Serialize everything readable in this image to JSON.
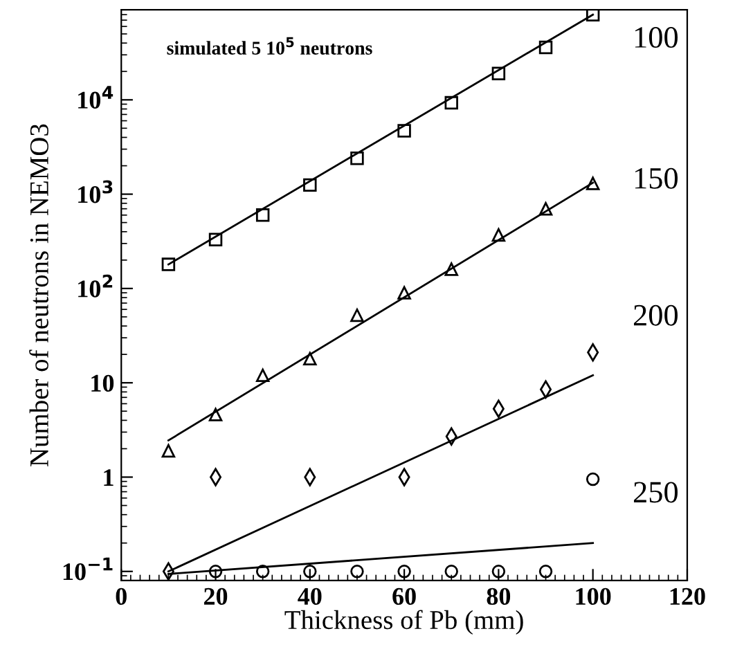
{
  "chart_data": {
    "type": "scatter",
    "xlabel": "Thickness of Pb (mm)",
    "ylabel": "Number of neutrons in NEMO3",
    "log": "y",
    "xlim": [
      0,
      120
    ],
    "xticks": [
      0,
      20,
      40,
      60,
      80,
      100,
      120
    ],
    "ylim": [
      0.08,
      90000
    ],
    "yticks": [
      {
        "value": 0.1,
        "label": "10$^{−1}$"
      },
      1,
      10,
      {
        "value": 100,
        "label": "10$^{2}$"
      },
      {
        "value": 1000,
        "label": "10$^{3}$"
      },
      {
        "value": 10000,
        "label": "10$^{4}$"
      }
    ],
    "x": [
      10,
      20,
      30,
      40,
      50,
      60,
      70,
      80,
      90,
      100
    ],
    "series": [
      {
        "marker": "square",
        "color": "#000000",
        "values": [
          180,
          330,
          600,
          1250,
          2400,
          4700,
          9300,
          19000,
          36000,
          80000
        ]
      },
      {
        "marker": "triangle",
        "color": "#000000",
        "values": [
          1.9,
          4.6,
          12,
          18,
          52,
          90,
          160,
          370,
          700,
          1300
        ]
      },
      {
        "marker": "diamond",
        "color": "#000000",
        "values": [
          0.1,
          1,
          null,
          1,
          null,
          1,
          2.7,
          5.3,
          8.5,
          21
        ]
      },
      {
        "marker": "circle",
        "color": "#000000",
        "values": [
          null,
          0.1,
          0.1,
          0.1,
          0.1,
          0.1,
          0.1,
          0.1,
          0.1,
          0.95
        ]
      },
      {
        "type": "line",
        "color": "#000000",
        "values": [
          180,
          null,
          null,
          null,
          null,
          null,
          null,
          null,
          null,
          80000
        ]
      },
      {
        "type": "line",
        "color": "#000000",
        "values": [
          2.45,
          null,
          null,
          null,
          null,
          null,
          null,
          null,
          null,
          1320
        ]
      },
      {
        "type": "line",
        "color": "#000000",
        "values": [
          0.1,
          null,
          null,
          null,
          null,
          null,
          null,
          null,
          null,
          12
        ]
      },
      {
        "type": "line",
        "color": "#000000",
        "values": [
          0.094,
          null,
          null,
          null,
          null,
          null,
          null,
          null,
          null,
          0.2
        ]
      }
    ],
    "annotations": [
      "simulated 5 10$^{5}$ neutrons",
      "100",
      "150",
      "200",
      "250"
    ]
  }
}
